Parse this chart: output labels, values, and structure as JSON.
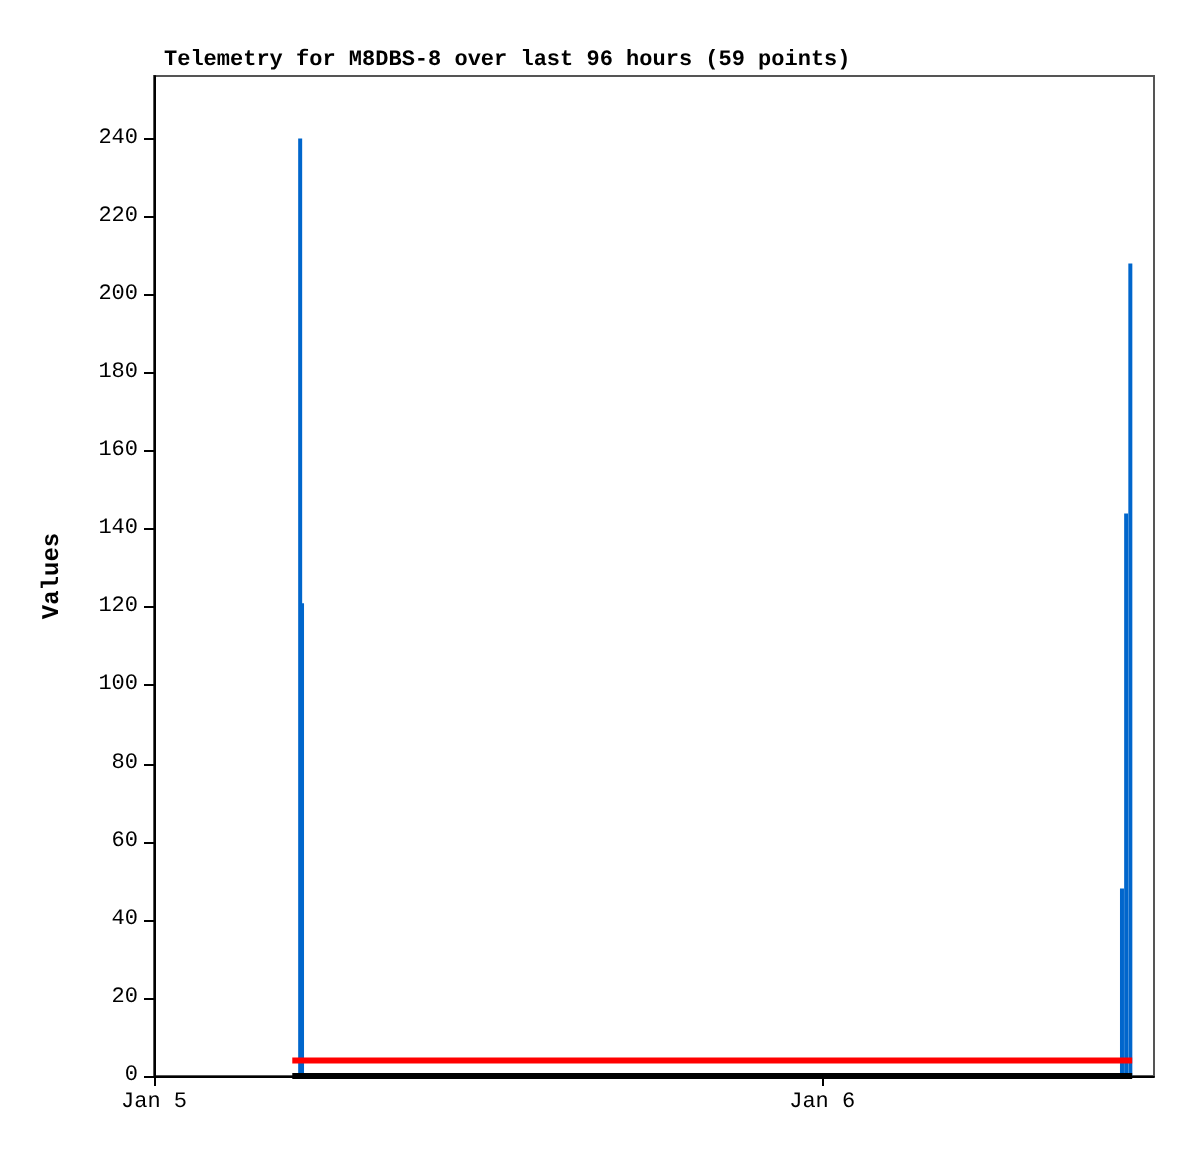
{
  "chart_data": {
    "type": "bar",
    "title": "Telemetry for M8DBS-8 over last 96 hours (59 points)",
    "ylabel": "Values",
    "xlim": [
      "--01-05T00:00",
      "--01-06T11:55"
    ],
    "xticks": [
      {
        "value": "--01-05T00:00",
        "label": "Jan 5"
      },
      {
        "value": "--01-06T00:00",
        "label": "Jan 6"
      }
    ],
    "ylim": [
      0,
      256
    ],
    "yticks": [
      0,
      20,
      40,
      60,
      80,
      100,
      120,
      140,
      160,
      180,
      200,
      220,
      240
    ],
    "grid": false,
    "series": [
      {
        "color": "#0066cc",
        "x": [
          "--01-05T05:15",
          "--01-05T05:19",
          "--01-06T10:46",
          "--01-06T10:55",
          "--01-06T11:04"
        ],
        "values": [
          240,
          121,
          48,
          144,
          208
        ]
      },
      {
        "type": "line",
        "color": "#000000",
        "x": [
          "--01-05T04:58",
          "--01-06T11:08"
        ],
        "values": [
          0,
          0
        ]
      },
      {
        "type": "line",
        "color": "#ff0000",
        "x": [
          "--01-05T04:58",
          "--01-06T11:08"
        ],
        "values": [
          4,
          4
        ]
      }
    ]
  }
}
